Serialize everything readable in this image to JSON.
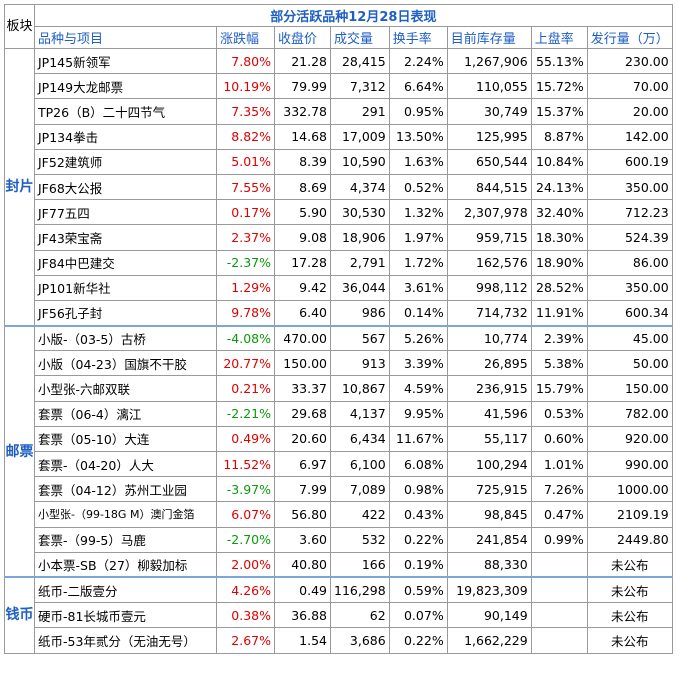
{
  "sector_header": "板块",
  "title": "部分活跃品种12月28日表现",
  "columns": [
    "品种与项目",
    "涨跌幅",
    "收盘价",
    "成交量",
    "换手率",
    "目前库存量",
    "上盘率",
    "发行量（万）"
  ],
  "sectors": [
    {
      "name": "封片",
      "rows": [
        {
          "name": "JP145新领军",
          "change": "7.80%",
          "close": "21.28",
          "volume": "28,415",
          "turnover": "2.24%",
          "stock": "1,267,906",
          "rate": "55.13%",
          "issue": "230.00",
          "dir": "up"
        },
        {
          "name": "JP149大龙邮票",
          "change": "10.19%",
          "close": "79.99",
          "volume": "7,312",
          "turnover": "6.64%",
          "stock": "110,055",
          "rate": "15.72%",
          "issue": "70.00",
          "dir": "up"
        },
        {
          "name": "TP26（B）二十四节气",
          "change": "7.35%",
          "close": "332.78",
          "volume": "291",
          "turnover": "0.95%",
          "stock": "30,749",
          "rate": "15.37%",
          "issue": "20.00",
          "dir": "up"
        },
        {
          "name": "JP134拳击",
          "change": "8.82%",
          "close": "14.68",
          "volume": "17,009",
          "turnover": "13.50%",
          "stock": "125,995",
          "rate": "8.87%",
          "issue": "142.00",
          "dir": "up"
        },
        {
          "name": "JF52建筑师",
          "change": "5.01%",
          "close": "8.39",
          "volume": "10,590",
          "turnover": "1.63%",
          "stock": "650,544",
          "rate": "10.84%",
          "issue": "600.19",
          "dir": "up"
        },
        {
          "name": "JF68大公报",
          "change": "7.55%",
          "close": "8.69",
          "volume": "4,374",
          "turnover": "0.52%",
          "stock": "844,515",
          "rate": "24.13%",
          "issue": "350.00",
          "dir": "up"
        },
        {
          "name": "JF77五四",
          "change": "0.17%",
          "close": "5.90",
          "volume": "30,530",
          "turnover": "1.32%",
          "stock": "2,307,978",
          "rate": "32.40%",
          "issue": "712.23",
          "dir": "up"
        },
        {
          "name": "JF43荣宝斋",
          "change": "2.37%",
          "close": "9.08",
          "volume": "18,906",
          "turnover": "1.97%",
          "stock": "959,715",
          "rate": "18.30%",
          "issue": "524.39",
          "dir": "up"
        },
        {
          "name": "JF84中巴建交",
          "change": "-2.37%",
          "close": "17.28",
          "volume": "2,791",
          "turnover": "1.72%",
          "stock": "162,576",
          "rate": "18.90%",
          "issue": "86.00",
          "dir": "down"
        },
        {
          "name": "JP101新华社",
          "change": "1.29%",
          "close": "9.42",
          "volume": "36,044",
          "turnover": "3.61%",
          "stock": "998,112",
          "rate": "28.52%",
          "issue": "350.00",
          "dir": "up"
        },
        {
          "name": "JF56孔子封",
          "change": "9.78%",
          "close": "6.40",
          "volume": "986",
          "turnover": "0.14%",
          "stock": "714,732",
          "rate": "11.91%",
          "issue": "600.34",
          "dir": "up"
        }
      ]
    },
    {
      "name": "邮票",
      "rows": [
        {
          "name": "小版-（03-5）古桥",
          "change": "-4.08%",
          "close": "470.00",
          "volume": "567",
          "turnover": "5.26%",
          "stock": "10,774",
          "rate": "2.39%",
          "issue": "45.00",
          "dir": "down"
        },
        {
          "name": "小版（04-23）国旗不干胶",
          "change": "20.77%",
          "close": "150.00",
          "volume": "913",
          "turnover": "3.39%",
          "stock": "26,895",
          "rate": "5.38%",
          "issue": "50.00",
          "dir": "up"
        },
        {
          "name": "小型张-六邮双联",
          "change": "0.21%",
          "close": "33.37",
          "volume": "10,867",
          "turnover": "4.59%",
          "stock": "236,915",
          "rate": "15.79%",
          "issue": "150.00",
          "dir": "up"
        },
        {
          "name": "套票（06-4）漓江",
          "change": "-2.21%",
          "close": "29.68",
          "volume": "4,137",
          "turnover": "9.95%",
          "stock": "41,596",
          "rate": "0.53%",
          "issue": "782.00",
          "dir": "down"
        },
        {
          "name": "套票（05-10）大连",
          "change": "0.49%",
          "close": "20.60",
          "volume": "6,434",
          "turnover": "11.67%",
          "stock": "55,117",
          "rate": "0.60%",
          "issue": "920.00",
          "dir": "up"
        },
        {
          "name": "套票-（04-20）人大",
          "change": "11.52%",
          "close": "6.97",
          "volume": "6,100",
          "turnover": "6.08%",
          "stock": "100,294",
          "rate": "1.01%",
          "issue": "990.00",
          "dir": "up"
        },
        {
          "name": "套票（04-12）苏州工业园",
          "change": "-3.97%",
          "close": "7.99",
          "volume": "7,089",
          "turnover": "0.98%",
          "stock": "725,915",
          "rate": "7.26%",
          "issue": "1000.00",
          "dir": "down"
        },
        {
          "name": "小型张-（99-18G M）澳门金箔",
          "change": "6.07%",
          "close": "56.80",
          "volume": "422",
          "turnover": "0.43%",
          "stock": "98,845",
          "rate": "0.47%",
          "issue": "2109.19",
          "dir": "up"
        },
        {
          "name": "套票-（99-5）马鹿",
          "change": "-2.70%",
          "close": "3.60",
          "volume": "532",
          "turnover": "0.22%",
          "stock": "241,854",
          "rate": "0.99%",
          "issue": "2449.80",
          "dir": "down"
        },
        {
          "name": "小本票-SB（27）柳毅加标",
          "change": "2.00%",
          "close": "40.80",
          "volume": "166",
          "turnover": "0.19%",
          "stock": "88,330",
          "rate": "",
          "issue": "未公布",
          "dir": "up"
        }
      ]
    },
    {
      "name": "钱币",
      "rows": [
        {
          "name": "纸币-二版壹分",
          "change": "4.26%",
          "close": "0.49",
          "volume": "116,298",
          "turnover": "0.59%",
          "stock": "19,823,309",
          "rate": "",
          "issue": "未公布",
          "dir": "up"
        },
        {
          "name": "硬币-81长城币壹元",
          "change": "0.38%",
          "close": "36.88",
          "volume": "62",
          "turnover": "0.07%",
          "stock": "90,149",
          "rate": "",
          "issue": "未公布",
          "dir": "up"
        },
        {
          "name": "纸币-53年贰分（无油无号）",
          "change": "2.67%",
          "close": "1.54",
          "volume": "3,686",
          "turnover": "0.22%",
          "stock": "1,662,229",
          "rate": "",
          "issue": "未公布",
          "dir": "up"
        }
      ]
    }
  ]
}
